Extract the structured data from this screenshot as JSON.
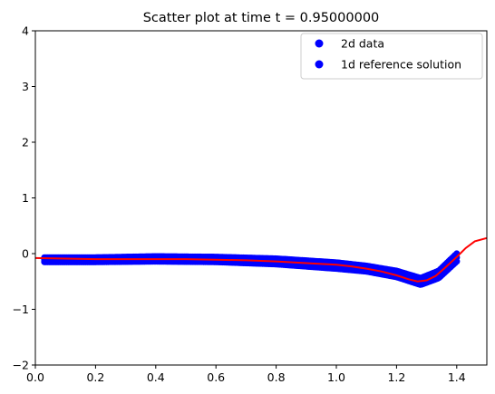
{
  "chart_data": {
    "type": "scatter",
    "title": "Scatter plot at time t =      0.95000000",
    "xlabel": "",
    "ylabel": "",
    "xlim": [
      0.0,
      1.5
    ],
    "ylim": [
      -2,
      4
    ],
    "xticks": [
      0.0,
      0.2,
      0.4,
      0.6,
      0.8,
      1.0,
      1.2,
      1.4
    ],
    "xtick_labels": [
      "0.0",
      "0.2",
      "0.4",
      "0.6",
      "0.8",
      "1.0",
      "1.2",
      "1.4"
    ],
    "yticks": [
      -2,
      -1,
      0,
      1,
      2,
      3,
      4
    ],
    "ytick_labels": [
      "−2",
      "−1",
      "0",
      "1",
      "2",
      "3",
      "4"
    ],
    "grid": false,
    "legend": {
      "position": "top-right",
      "entries": [
        {
          "label": "2d data",
          "color": "#0000ff",
          "marker": "circle"
        },
        {
          "label": "1d reference solution",
          "color": "#0000ff",
          "marker": "circle"
        }
      ]
    },
    "series": [
      {
        "name": "2d data",
        "kind": "scatter",
        "color": "#0000ff",
        "band_lower": [
          [
            0.03,
            -0.15
          ],
          [
            0.2,
            -0.15
          ],
          [
            0.4,
            -0.14
          ],
          [
            0.6,
            -0.15
          ],
          [
            0.8,
            -0.19
          ],
          [
            1.0,
            -0.27
          ],
          [
            1.1,
            -0.32
          ],
          [
            1.2,
            -0.42
          ],
          [
            1.28,
            -0.56
          ],
          [
            1.34,
            -0.44
          ],
          [
            1.4,
            -0.14
          ]
        ],
        "band_upper": [
          [
            0.03,
            -0.07
          ],
          [
            0.2,
            -0.07
          ],
          [
            0.4,
            -0.05
          ],
          [
            0.6,
            -0.06
          ],
          [
            0.8,
            -0.09
          ],
          [
            1.0,
            -0.16
          ],
          [
            1.1,
            -0.22
          ],
          [
            1.2,
            -0.31
          ],
          [
            1.28,
            -0.44
          ],
          [
            1.34,
            -0.31
          ],
          [
            1.4,
            0.0
          ]
        ],
        "x_range": [
          0.03,
          1.4
        ]
      },
      {
        "name": "1d reference solution",
        "kind": "line",
        "color": "#ff0000",
        "x": [
          0.0,
          0.1,
          0.2,
          0.3,
          0.4,
          0.5,
          0.6,
          0.7,
          0.8,
          0.9,
          1.0,
          1.05,
          1.1,
          1.15,
          1.2,
          1.24,
          1.27,
          1.3,
          1.33,
          1.36,
          1.4,
          1.43,
          1.46,
          1.5
        ],
        "y": [
          -0.08,
          -0.09,
          -0.1,
          -0.1,
          -0.1,
          -0.1,
          -0.11,
          -0.12,
          -0.14,
          -0.17,
          -0.2,
          -0.23,
          -0.27,
          -0.32,
          -0.39,
          -0.46,
          -0.5,
          -0.48,
          -0.4,
          -0.26,
          -0.06,
          0.1,
          0.22,
          0.28
        ]
      }
    ]
  }
}
